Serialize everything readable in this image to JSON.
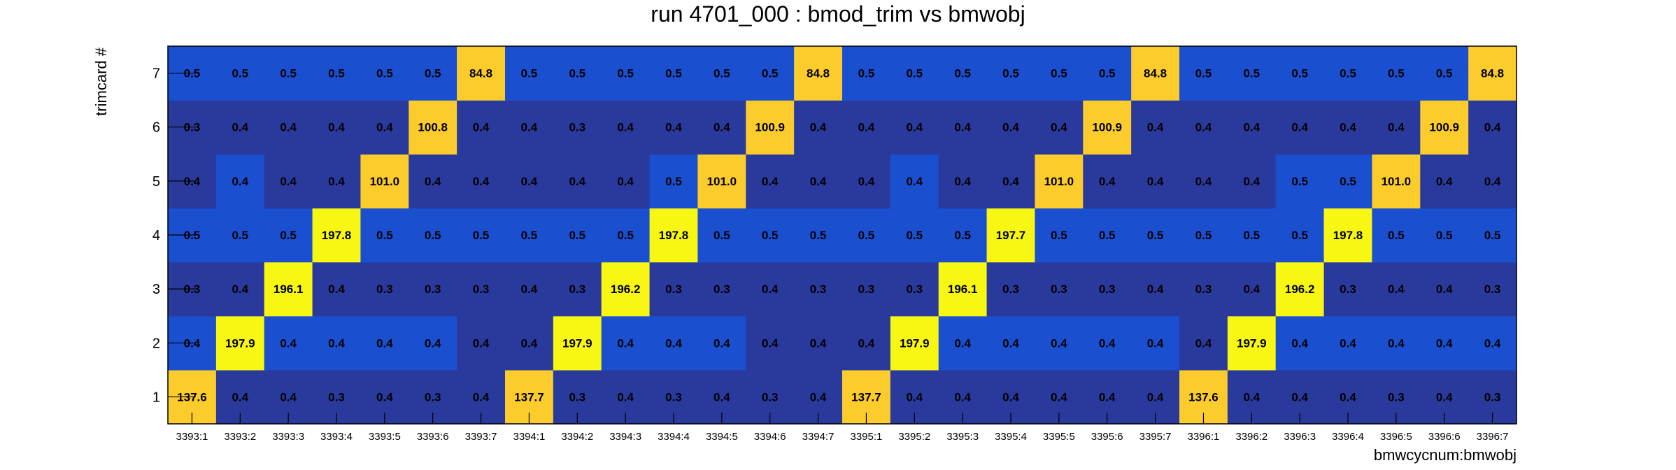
{
  "chart_data": {
    "type": "heatmap",
    "title": "run 4701_000 : bmod_trim vs bmwobj",
    "xlabel": "bmwcycnum:bmwobj",
    "ylabel": "trimcard #",
    "x_categories": [
      "3393:1",
      "3393:2",
      "3393:3",
      "3393:4",
      "3393:5",
      "3393:6",
      "3393:7",
      "3394:1",
      "3394:2",
      "3394:3",
      "3394:4",
      "3394:5",
      "3394:6",
      "3394:7",
      "3395:1",
      "3395:2",
      "3395:3",
      "3395:4",
      "3395:5",
      "3395:6",
      "3395:7",
      "3396:1",
      "3396:2",
      "3396:3",
      "3396:4",
      "3396:5",
      "3396:6",
      "3396:7"
    ],
    "y_categories": [
      "1",
      "2",
      "3",
      "4",
      "5",
      "6",
      "7"
    ],
    "labels": [
      [
        "137.6",
        "0.4",
        "0.4",
        "0.3",
        "0.4",
        "0.3",
        "0.4",
        "137.7",
        "0.3",
        "0.4",
        "0.3",
        "0.4",
        "0.3",
        "0.4",
        "137.7",
        "0.4",
        "0.4",
        "0.4",
        "0.4",
        "0.4",
        "0.4",
        "137.6",
        "0.4",
        "0.4",
        "0.4",
        "0.3",
        "0.4",
        "0.3"
      ],
      [
        "0.4",
        "197.9",
        "0.4",
        "0.4",
        "0.4",
        "0.4",
        "0.4",
        "0.4",
        "197.9",
        "0.4",
        "0.4",
        "0.4",
        "0.4",
        "0.4",
        "0.4",
        "197.9",
        "0.4",
        "0.4",
        "0.4",
        "0.4",
        "0.4",
        "0.4",
        "197.9",
        "0.4",
        "0.4",
        "0.4",
        "0.4",
        "0.4"
      ],
      [
        "0.3",
        "0.4",
        "196.1",
        "0.4",
        "0.3",
        "0.3",
        "0.3",
        "0.4",
        "0.3",
        "196.2",
        "0.3",
        "0.3",
        "0.4",
        "0.3",
        "0.3",
        "0.3",
        "196.1",
        "0.3",
        "0.3",
        "0.3",
        "0.4",
        "0.3",
        "0.4",
        "196.2",
        "0.3",
        "0.4",
        "0.4",
        "0.3"
      ],
      [
        "0.5",
        "0.5",
        "0.5",
        "197.8",
        "0.5",
        "0.5",
        "0.5",
        "0.5",
        "0.5",
        "0.5",
        "197.8",
        "0.5",
        "0.5",
        "0.5",
        "0.5",
        "0.5",
        "0.5",
        "197.7",
        "0.5",
        "0.5",
        "0.5",
        "0.5",
        "0.5",
        "0.5",
        "197.8",
        "0.5",
        "0.5",
        "0.5"
      ],
      [
        "0.4",
        "0.4",
        "0.4",
        "0.4",
        "101.0",
        "0.4",
        "0.4",
        "0.4",
        "0.4",
        "0.4",
        "0.5",
        "101.0",
        "0.4",
        "0.4",
        "0.4",
        "0.4",
        "0.4",
        "0.4",
        "101.0",
        "0.4",
        "0.4",
        "0.4",
        "0.4",
        "0.5",
        "0.5",
        "101.0",
        "0.4",
        "0.4"
      ],
      [
        "0.3",
        "0.4",
        "0.4",
        "0.4",
        "0.4",
        "100.8",
        "0.4",
        "0.4",
        "0.3",
        "0.4",
        "0.4",
        "0.4",
        "100.9",
        "0.4",
        "0.4",
        "0.4",
        "0.4",
        "0.4",
        "0.4",
        "100.9",
        "0.4",
        "0.4",
        "0.4",
        "0.4",
        "0.4",
        "0.4",
        "100.9",
        "0.4"
      ],
      [
        "0.5",
        "0.5",
        "0.5",
        "0.5",
        "0.5",
        "0.5",
        "84.8",
        "0.5",
        "0.5",
        "0.5",
        "0.5",
        "0.5",
        "0.5",
        "84.8",
        "0.5",
        "0.5",
        "0.5",
        "0.5",
        "0.5",
        "0.5",
        "84.8",
        "0.5",
        "0.5",
        "0.5",
        "0.5",
        "0.5",
        "0.5",
        "84.8"
      ]
    ],
    "colors": {
      "low_dark": "#2a3a9c",
      "low_bright": "#1a4fd0",
      "mid_orange": "#fbcc2c",
      "high_yellow": "#f7f713"
    },
    "grid": false,
    "legend": "none"
  }
}
